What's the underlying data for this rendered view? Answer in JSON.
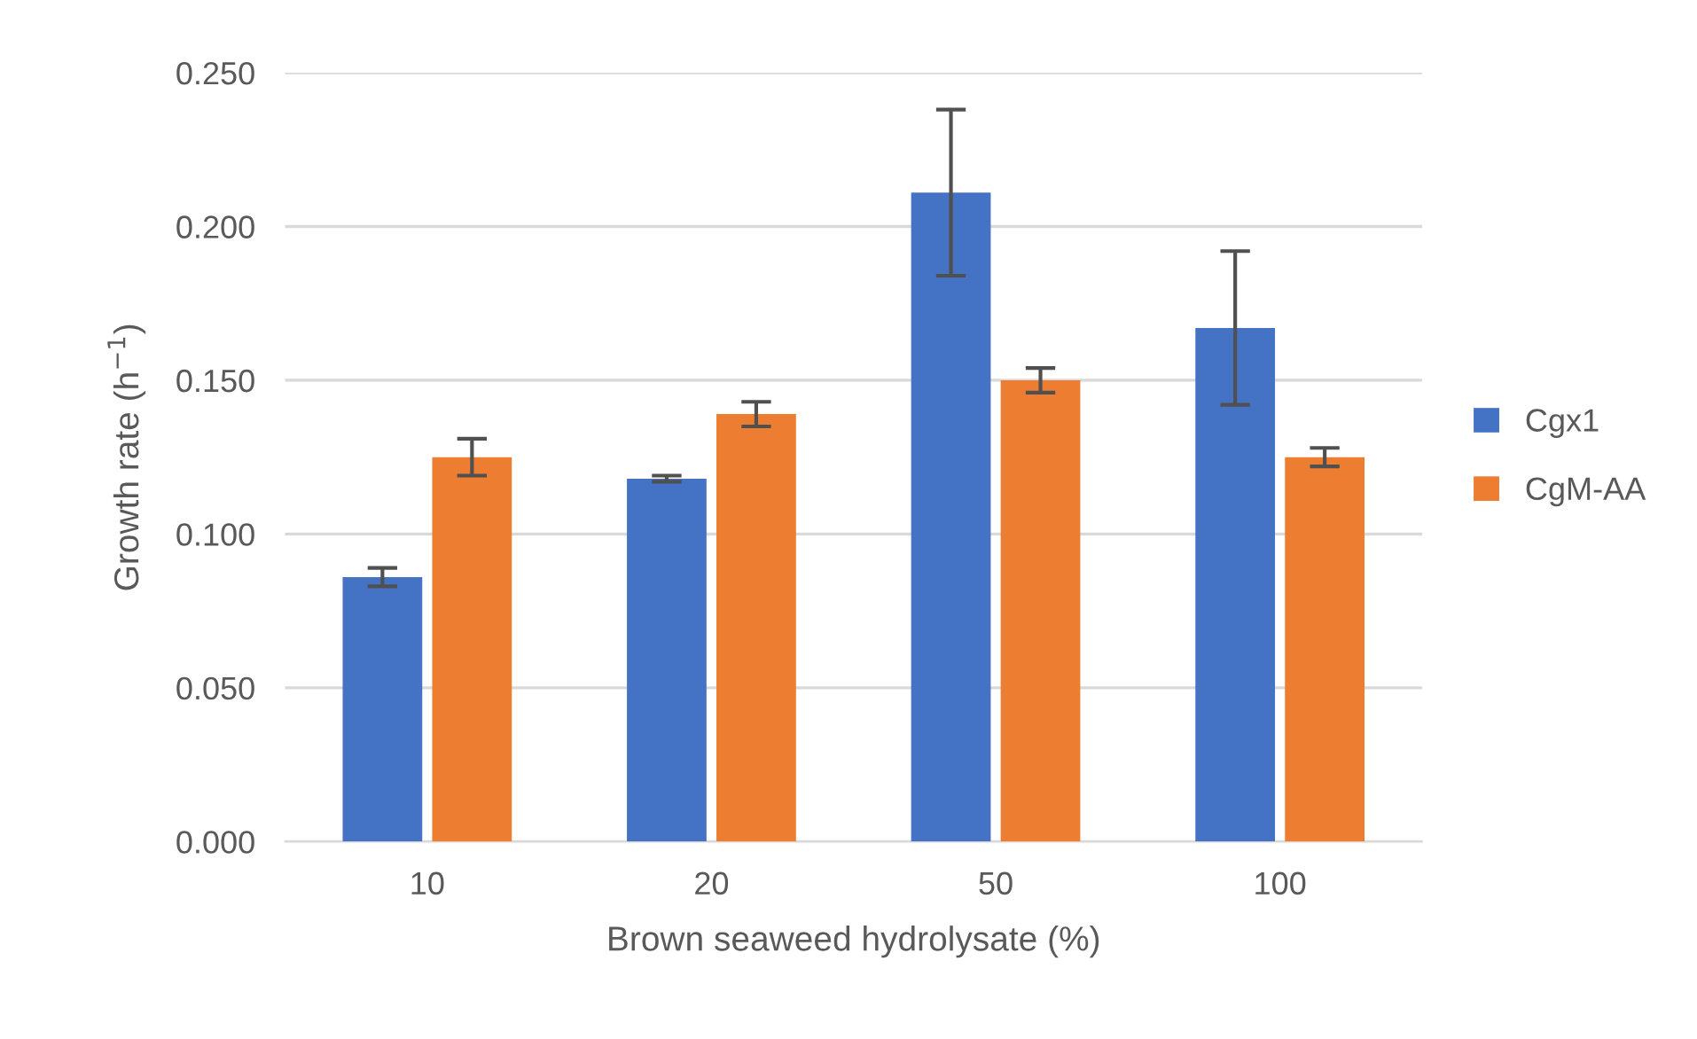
{
  "chart_data": {
    "type": "bar",
    "xlabel": "Brown seaweed hydrolysate (%)",
    "ylabel": "Growth rate (h$^{−1}$)",
    "categories": [
      "10",
      "20",
      "50",
      "100"
    ],
    "series": [
      {
        "name": "Cgx1",
        "color": "#4472c4",
        "values": [
          0.086,
          0.118,
          0.211,
          0.167
        ],
        "errors": [
          0.003,
          0.001,
          0.027,
          0.025
        ]
      },
      {
        "name": "CgM-AA",
        "color": "#ed7d31",
        "values": [
          0.125,
          0.139,
          0.15,
          0.125
        ],
        "errors": [
          0.006,
          0.004,
          0.004,
          0.003
        ]
      }
    ],
    "ylim": [
      0,
      0.25
    ],
    "yticks": [
      {
        "value": 0,
        "label": "0.000"
      },
      {
        "value": 0.05,
        "label": "0.050"
      },
      {
        "value": 0.1,
        "label": "0.100"
      },
      {
        "value": 0.15,
        "label": "0.150"
      },
      {
        "value": 0.2,
        "label": "0.200"
      },
      {
        "value": 0.25,
        "label": "0.250"
      }
    ],
    "grid": "y",
    "legend": "right"
  }
}
